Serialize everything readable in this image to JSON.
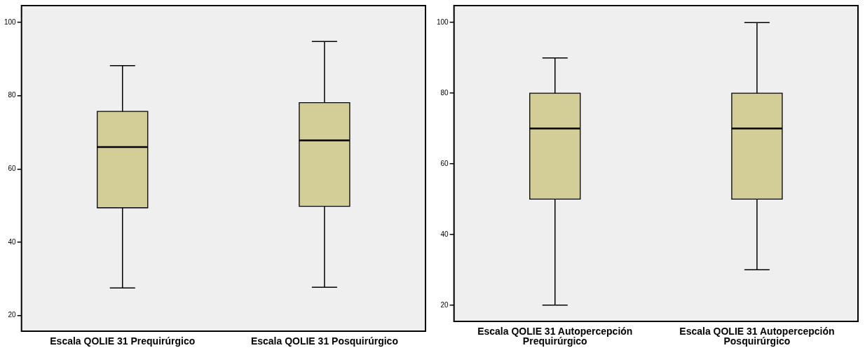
{
  "chart_data": [
    {
      "type": "box",
      "categories": [
        "Escala QOLIE 31 Prequirúrgico",
        "Escala QOLIE 31 Posquirúrgico"
      ],
      "series": [
        {
          "color": "#d3cd97",
          "boxes": [
            {
              "low": 27.5,
              "q1": 49.4,
              "median": 66,
              "q3": 75.7,
              "high": 88.2
            },
            {
              "low": 27.7,
              "q1": 49.8,
              "median": 67.8,
              "q3": 78.1,
              "high": 94.8
            }
          ]
        }
      ],
      "ylim": [
        15.7,
        104.6
      ],
      "yticks": [
        20,
        40,
        60,
        80,
        100
      ],
      "grid": false,
      "legend": false
    },
    {
      "type": "box",
      "categories": [
        "Escala QOLIE 31 Autopercepción Prequirúrgico",
        "Escala QOLIE 31 Autopercepción Posquirúrgico"
      ],
      "series": [
        {
          "color": "#d3cd97",
          "boxes": [
            {
              "low": 20,
              "q1": 50,
              "median": 70,
              "q3": 80,
              "high": 90
            },
            {
              "low": 30,
              "q1": 50,
              "median": 70,
              "q3": 80,
              "high": 100
            }
          ]
        }
      ],
      "ylim": [
        15.4,
        104.8
      ],
      "yticks": [
        20,
        40,
        60,
        80,
        100
      ],
      "grid": false,
      "legend": false
    }
  ]
}
